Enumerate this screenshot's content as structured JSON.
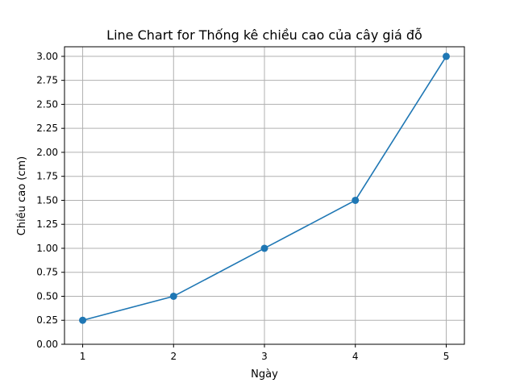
{
  "chart_data": {
    "type": "line",
    "title": "Line Chart for Thống kê chiều cao của cây giá đỗ",
    "xlabel": "Ngày",
    "ylabel": "Chiều cao (cm)",
    "x": [
      1,
      2,
      3,
      4,
      5
    ],
    "values": [
      0.25,
      0.5,
      1.0,
      1.5,
      3.0
    ],
    "xlim": [
      0.8,
      5.2
    ],
    "ylim": [
      0,
      3.1
    ],
    "x_ticks": [
      "1",
      "2",
      "3",
      "4",
      "5"
    ],
    "y_ticks": [
      "0.00",
      "0.25",
      "0.50",
      "0.75",
      "1.00",
      "1.25",
      "1.50",
      "1.75",
      "2.00",
      "2.25",
      "2.50",
      "2.75",
      "3.00"
    ],
    "grid": true,
    "marker": "circle",
    "line_color": "#1f77b4"
  }
}
